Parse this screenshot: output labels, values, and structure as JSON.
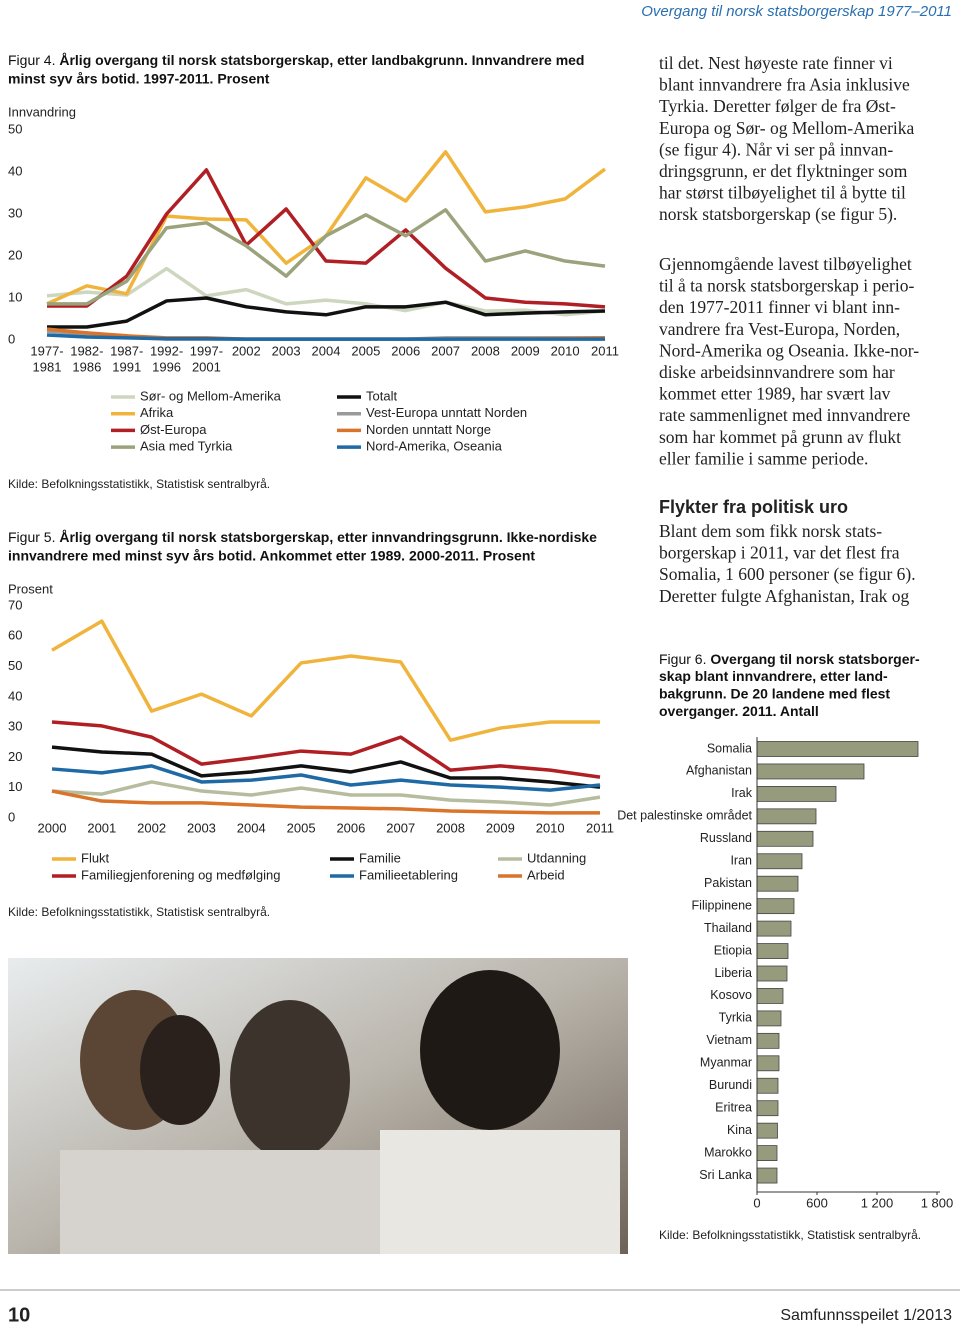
{
  "header": "Overgang til norsk statsborgerskap 1977–2011",
  "chart_data": [
    {
      "type": "line",
      "label": "Figur 4.",
      "title": [
        "Årlig overgang til norsk statsborgerskap, etter landbakgrunn. Innvandrere med",
        "minst syv års botid. 1997-2011. Prosent"
      ],
      "ylabel": "Innvandring",
      "categories": [
        [
          "1977-",
          "1981"
        ],
        [
          "1982-",
          "1986"
        ],
        [
          "1987-",
          "1991"
        ],
        [
          "1992-",
          "1996"
        ],
        [
          "1997-",
          "2001"
        ],
        [
          "2002"
        ],
        [
          "2003"
        ],
        [
          "2004"
        ],
        [
          "2005"
        ],
        [
          "2006"
        ],
        [
          "2007"
        ],
        [
          "2008"
        ],
        [
          "2009"
        ],
        [
          "2010"
        ],
        [
          "2011"
        ]
      ],
      "ylim": [
        0,
        50
      ],
      "yticks": [
        0,
        10,
        20,
        30,
        40,
        50
      ],
      "series": [
        {
          "name": "Sør- og Mellom-Amerika",
          "color": "#cdd6be",
          "values": [
            10.5,
            11.4,
            10.7,
            17,
            10.5,
            12,
            8.6,
            9.5,
            8.6,
            7,
            9,
            6.9,
            7.1,
            6,
            6.9
          ]
        },
        {
          "name": "Afrika",
          "color": "#f0b43c",
          "values": [
            8.6,
            12.9,
            11,
            29.5,
            28.8,
            28.6,
            18.3,
            24.8,
            38.6,
            33.1,
            44.8,
            30.5,
            31.7,
            33.6,
            40.7
          ]
        },
        {
          "name": "Øst-Europa",
          "color": "#b01f24",
          "values": [
            8.1,
            8.1,
            15.2,
            30,
            40.5,
            22.6,
            31.2,
            18.8,
            18.3,
            26.2,
            17.1,
            10,
            9,
            8.6,
            7.9
          ]
        },
        {
          "name": "Asia med Tyrkia",
          "color": "#9ba37c",
          "values": [
            8.6,
            8.6,
            14,
            26.7,
            27.9,
            22.4,
            15.2,
            24.8,
            29.8,
            24.8,
            31,
            18.8,
            21.2,
            18.8,
            17.6
          ]
        },
        {
          "name": "Totalt",
          "color": "#111111",
          "values": [
            3.1,
            3.1,
            4.5,
            9.3,
            10,
            7.9,
            6.7,
            6,
            7.9,
            7.9,
            9,
            6,
            6.4,
            6.7,
            6.9
          ]
        },
        {
          "name": "Vest-Europa unntatt Norden",
          "color": "#9a9a9a",
          "values": [
            2.1,
            1.4,
            0.7,
            0.2,
            0.2,
            0.2,
            0.2,
            0.2,
            0.2,
            0.2,
            0.5,
            0.5,
            0.5,
            0.5,
            0.5
          ]
        },
        {
          "name": "Norden unntatt Norge",
          "color": "#d9742a",
          "values": [
            2.6,
            1.7,
            1,
            0.5,
            0.5,
            0.2,
            0.2,
            0.2,
            0.2,
            0.2,
            0.2,
            0.3,
            0.3,
            0.4,
            0.5
          ]
        },
        {
          "name": "Nord-Amerika, Oseania",
          "color": "#1f6aa5",
          "values": [
            1.2,
            0.7,
            0.5,
            0.3,
            0.3,
            0.2,
            0.2,
            0.2,
            0.2,
            0.2,
            0.2,
            0.2,
            0.2,
            0.2,
            0.2
          ]
        }
      ],
      "source": "Kilde: Befolkningsstatistikk, Statistisk sentralbyrå."
    },
    {
      "type": "line",
      "label": "Figur 5.",
      "title": [
        "Årlig overgang til norsk statsborgerskap, etter innvandringsgrunn. Ikke-nordiske",
        "innvandrere med minst syv års botid. Ankommet etter 1989. 2000-2011. Prosent"
      ],
      "ylabel": "Prosent",
      "categories": [
        "2000",
        "2001",
        "2002",
        "2003",
        "2004",
        "2005",
        "2006",
        "2007",
        "2008",
        "2009",
        "2010",
        "2011"
      ],
      "ylim": [
        0,
        70
      ],
      "yticks": [
        0,
        10,
        20,
        30,
        40,
        50,
        60,
        70
      ],
      "series": [
        {
          "name": "Flukt",
          "color": "#f0b43c",
          "values": [
            55.4,
            65,
            35.3,
            40.9,
            33.7,
            51.2,
            53.5,
            51.5,
            25.7,
            29.7,
            31.7,
            31.7
          ]
        },
        {
          "name": "Familiegjenforening og medfølging",
          "color": "#b01f24",
          "values": [
            31.7,
            30.4,
            26.7,
            17.8,
            19.8,
            22.1,
            21.1,
            26.7,
            15.8,
            17.2,
            15.8,
            13.5
          ]
        },
        {
          "name": "Familie",
          "color": "#111111",
          "values": [
            23.4,
            21.8,
            21.1,
            13.9,
            15.2,
            17.2,
            15.2,
            18.5,
            13.2,
            13.2,
            11.9,
            10.2
          ]
        },
        {
          "name": "Familieetablering",
          "color": "#1f6aa5",
          "values": [
            16.2,
            14.9,
            17.2,
            11.9,
            12.5,
            14.2,
            10.9,
            12.5,
            10.9,
            10.2,
            9.2,
            10.9
          ]
        },
        {
          "name": "Utdanning",
          "color": "#b6bd9f",
          "values": [
            8.9,
            7.9,
            11.9,
            8.9,
            7.6,
            9.9,
            7.6,
            7.6,
            5.9,
            5.3,
            4.3,
            6.9
          ]
        },
        {
          "name": "Arbeid",
          "color": "#d9742a",
          "values": [
            8.9,
            5.6,
            5,
            5,
            4.3,
            3.6,
            3.3,
            3,
            2.3,
            2,
            1.7,
            1.7
          ]
        }
      ],
      "source": "Kilde: Befolkningsstatistikk, Statistisk sentralbyrå."
    },
    {
      "type": "barh",
      "label": "Figur 6.",
      "title": [
        "Overgang til norsk statsborger-",
        "skap blant innvandrere, etter land-",
        "bakgrunn. De 20 landene med flest",
        "overganger. 2011. Antall"
      ],
      "categories": [
        "Somalia",
        "Afghanistan",
        "Irak",
        "Det palestinske området",
        "Russland",
        "Iran",
        "Pakistan",
        "Filippinene",
        "Thailand",
        "Etiopia",
        "Liberia",
        "Kosovo",
        "Tyrkia",
        "Vietnam",
        "Myanmar",
        "Burundi",
        "Eritrea",
        "Kina",
        "Marokko",
        "Sri Lanka"
      ],
      "values": [
        1610,
        1070,
        790,
        590,
        560,
        450,
        410,
        370,
        340,
        310,
        300,
        260,
        240,
        220,
        220,
        210,
        210,
        205,
        200,
        200
      ],
      "color": "#979b7d",
      "xlim": [
        0,
        1800
      ],
      "xticks": [
        0,
        600,
        {
          "value": 1200,
          "label": "1 200"
        },
        {
          "value": 1800,
          "label": "1 800"
        }
      ],
      "source": "Kilde: Befolkningsstatistikk, Statistisk sentralbyrå."
    }
  ],
  "body": {
    "p1": [
      "til det. Nest høyeste rate finner vi",
      "blant innvandrere fra Asia inklusive",
      "Tyrkia. Deretter følger de fra Øst-",
      "Europa og Sør- og Mellom-Amerika",
      "(se figur 4). Når vi ser på innvan-",
      "dringsgrunn, er det flyktninger som",
      "har størst tilbøyelighet til å bytte til",
      "norsk statsborgerskap (se figur 5)."
    ],
    "p2": [
      "Gjennomgående lavest tilbøyelighet",
      "til å ta norsk statsborgerskap i perio-",
      "den 1977-2011 finner vi blant inn-",
      "vandrere fra Vest-Europa, Norden,",
      "Nord-Amerika og Oseania. Ikke-nor-",
      "diske arbeidsinnvandrere som har",
      "kommet etter 1989, har svært lav",
      "rate sammenlignet med innvandrere",
      "som har kommet på grunn av flukt",
      "eller familie i samme periode."
    ],
    "heading": "Flykter fra politisk uro",
    "p3": [
      "Blant dem som fikk norsk stats-",
      "borgerskap i 2011, var det flest fra",
      "Somalia, 1 600 personer (se figur 6).",
      "Deretter fulgte Afghanistan, Irak og"
    ]
  },
  "footer": {
    "page": "10",
    "publication": "Samfunnsspeilet 1/2013"
  }
}
